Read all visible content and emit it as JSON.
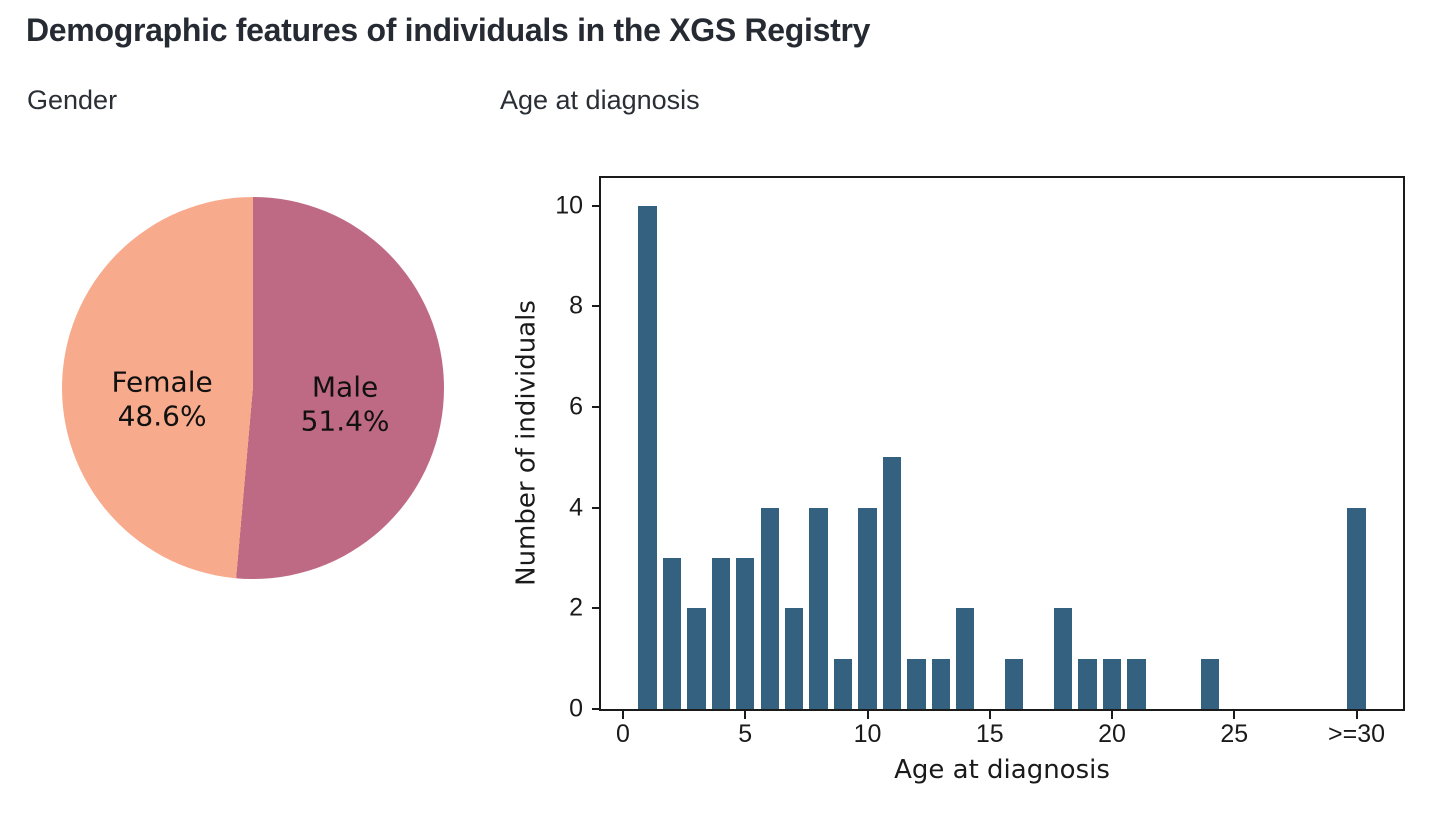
{
  "page": {
    "title": "Demographic features of individuals in the XGS Registry",
    "background": "#ffffff",
    "title_color": "#262b33"
  },
  "chart_data": [
    {
      "type": "pie",
      "title": "Gender",
      "start_angle": "top",
      "first_clockwise_slice": "Male",
      "label_color": "#111111",
      "slices": [
        {
          "label": "Female",
          "value_pct": 48.6,
          "pct_label": "48.6%",
          "color": "#f8ab8c",
          "label_x_pct": 26.2,
          "label_y_pct": 53.0
        },
        {
          "label": "Male",
          "value_pct": 51.4,
          "pct_label": "51.4%",
          "color": "#bf6a85",
          "label_x_pct": 74.1,
          "label_y_pct": 54.3
        }
      ]
    },
    {
      "type": "bar",
      "title": "Age at diagnosis",
      "xlabel": "Age at diagnosis",
      "ylabel": "Number of individuals",
      "bar_color": "#34617f",
      "axis_color": "#1a1a1a",
      "bar_width": 0.75,
      "xlim": [
        -0.9,
        31.9
      ],
      "ylim": [
        0,
        10.55
      ],
      "grid": false,
      "frame": "box",
      "bars": [
        {
          "x": 1,
          "n": 10
        },
        {
          "x": 2,
          "n": 3
        },
        {
          "x": 3,
          "n": 2
        },
        {
          "x": 4,
          "n": 3
        },
        {
          "x": 5,
          "n": 3
        },
        {
          "x": 6,
          "n": 4
        },
        {
          "x": 7,
          "n": 2
        },
        {
          "x": 8,
          "n": 4
        },
        {
          "x": 9,
          "n": 1
        },
        {
          "x": 10,
          "n": 4
        },
        {
          "x": 11,
          "n": 5
        },
        {
          "x": 12,
          "n": 1
        },
        {
          "x": 13,
          "n": 1
        },
        {
          "x": 14,
          "n": 2
        },
        {
          "x": 16,
          "n": 1
        },
        {
          "x": 18,
          "n": 2
        },
        {
          "x": 19,
          "n": 1
        },
        {
          "x": 20,
          "n": 1
        },
        {
          "x": 21,
          "n": 1
        },
        {
          "x": 24,
          "n": 1
        },
        {
          "x": 30,
          "n": 4
        }
      ],
      "xticks": [
        {
          "v": 0,
          "label": "0"
        },
        {
          "v": 5,
          "label": "5"
        },
        {
          "v": 10,
          "label": "10"
        },
        {
          "v": 15,
          "label": "15"
        },
        {
          "v": 20,
          "label": "20"
        },
        {
          "v": 25,
          "label": "25"
        },
        {
          "v": 30,
          "label": ">=30"
        }
      ],
      "yticks": [
        {
          "v": 0,
          "label": "0"
        },
        {
          "v": 2,
          "label": "2"
        },
        {
          "v": 4,
          "label": "4"
        },
        {
          "v": 6,
          "label": "6"
        },
        {
          "v": 8,
          "label": "8"
        },
        {
          "v": 10,
          "label": "10"
        }
      ]
    }
  ]
}
